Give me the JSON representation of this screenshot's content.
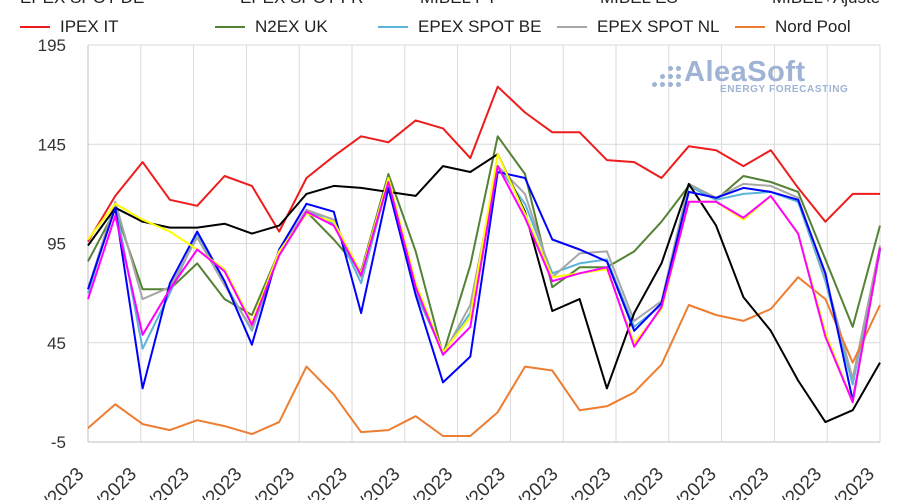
{
  "legend_top": [
    {
      "name": "EPEX SPOT DE",
      "color": "#000000",
      "visible_text": "EPEX SPOT DE"
    },
    {
      "name": "EPEX SPOT FR",
      "color": "#0000ff",
      "visible_text": "EPEX SPOT FR"
    },
    {
      "name": "MIBEL PT",
      "color": "#ffff00",
      "visible_text": "MIBEL PT"
    },
    {
      "name": "MIBEL ES",
      "color": "#ff00ff",
      "visible_text": "MIBEL ES"
    },
    {
      "name": "MIBEL+Ajuste",
      "color": "#000000",
      "visible_text": "MIBEL+Ajuste"
    }
  ],
  "legend_bottom": [
    {
      "name": "IPEX IT",
      "color": "#ee1c1c"
    },
    {
      "name": "N2EX UK",
      "color": "#548235"
    },
    {
      "name": "EPEX SPOT BE",
      "color": "#5ab4dc"
    },
    {
      "name": "EPEX SPOT NL",
      "color": "#a6a6a6"
    },
    {
      "name": "Nord Pool",
      "color": "#ed7d31"
    }
  ],
  "logo": {
    "name": "AleaSoft",
    "tagline": "ENERGY FORECASTING"
  },
  "chart_data": {
    "type": "line",
    "ylim": [
      -5,
      195
    ],
    "yticks": [
      -5,
      45,
      95,
      145,
      195
    ],
    "grid": true,
    "x_tick_labels": [
      "/2023",
      "/2023",
      "/2023",
      "/2023",
      "/2023",
      "/2023",
      "/2023",
      "/2023",
      "/2023",
      "/2023",
      "/2023",
      "/2023",
      "/2023",
      "/2023",
      "/2023",
      "/2023"
    ],
    "series": [
      {
        "name": "IPEX IT",
        "color": "#ee1c1c",
        "values": [
          96,
          119,
          136,
          117,
          114,
          129,
          124,
          101,
          128,
          139,
          149,
          146,
          157,
          153,
          138,
          174,
          161,
          151,
          151,
          137,
          136,
          128,
          144,
          142,
          134,
          142,
          123,
          106,
          120,
          120
        ]
      },
      {
        "name": "N2EX UK",
        "color": "#548235",
        "values": [
          86,
          112,
          72,
          72,
          85,
          67,
          59,
          91,
          111,
          97,
          81,
          130,
          91,
          39,
          84,
          149,
          130,
          73,
          83,
          83,
          91,
          106,
          124,
          117,
          129,
          126,
          121,
          87,
          53,
          104
        ]
      },
      {
        "name": "EPEX SPOT BE",
        "color": "#5ab4dc",
        "values": [
          70,
          115,
          42,
          70,
          100,
          75,
          51,
          90,
          112,
          105,
          75,
          127,
          70,
          40,
          60,
          134,
          115,
          80,
          85,
          87,
          53,
          64,
          124,
          117,
          120,
          121,
          116,
          76,
          24,
          93
        ]
      },
      {
        "name": "EPEX SPOT NL",
        "color": "#a6a6a6",
        "values": [
          72,
          116,
          67,
          73,
          98,
          74,
          52,
          91,
          112,
          107,
          78,
          128,
          73,
          39,
          64,
          134,
          120,
          78,
          90,
          91,
          56,
          66,
          125,
          118,
          125,
          124,
          118,
          78,
          27,
          94
        ]
      },
      {
        "name": "Nord Pool",
        "color": "#ed7d31",
        "values": [
          2,
          14,
          4,
          1,
          6,
          3,
          -1,
          5,
          33,
          19,
          0,
          1,
          8,
          -2,
          -2,
          10,
          33,
          31,
          11,
          13,
          20,
          34,
          64,
          59,
          56,
          62,
          78,
          67,
          35,
          64
        ]
      },
      {
        "name": "EPEX SPOT DE",
        "color": "#000000",
        "values": [
          94,
          113,
          106,
          103,
          103,
          105,
          100,
          104,
          120,
          124,
          123,
          121,
          119,
          134,
          131,
          140,
          111,
          61,
          67,
          22,
          60,
          85,
          125,
          104,
          68,
          51,
          26,
          5,
          11,
          35
        ]
      },
      {
        "name": "EPEX SPOT FR",
        "color": "#0000ff",
        "values": [
          72,
          113,
          22,
          75,
          101,
          76,
          44,
          92,
          115,
          111,
          60,
          123,
          69,
          25,
          38,
          131,
          128,
          97,
          92,
          86,
          51,
          65,
          121,
          118,
          123,
          121,
          117,
          80,
          16,
          92
        ]
      },
      {
        "name": "MIBEL PT",
        "color": "#ffff00",
        "values": [
          97,
          115,
          107,
          101,
          92,
          82,
          55,
          91,
          110,
          106,
          80,
          128,
          75,
          40,
          58,
          140,
          110,
          78,
          80,
          82,
          45,
          62,
          116,
          116,
          107,
          119,
          100,
          50,
          15,
          93
        ]
      },
      {
        "name": "MIBEL ES",
        "color": "#ff00ff",
        "values": [
          67,
          109,
          49,
          72,
          92,
          81,
          54,
          89,
          111,
          104,
          79,
          126,
          73,
          39,
          53,
          134,
          108,
          76,
          80,
          83,
          43,
          63,
          116,
          116,
          108,
          119,
          100,
          48,
          15,
          93
        ]
      }
    ]
  }
}
